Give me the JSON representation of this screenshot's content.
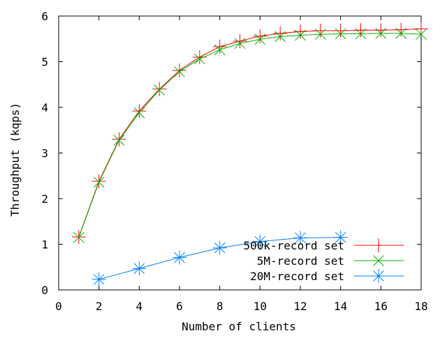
{
  "chart_data": {
    "type": "line",
    "xlabel": "Number of clients",
    "ylabel": "Throughput (kqps)",
    "xlim": [
      0,
      18
    ],
    "ylim": [
      0,
      6
    ],
    "x_ticks": [
      0,
      2,
      4,
      6,
      8,
      10,
      12,
      14,
      16,
      18
    ],
    "y_ticks": [
      0,
      1,
      2,
      3,
      4,
      5,
      6
    ],
    "grid": false,
    "legend_position": "bottom-right",
    "series": [
      {
        "name": "500k-record set",
        "color": "#ff0000",
        "marker": "plus",
        "x": [
          1,
          2,
          3,
          4,
          5,
          6,
          7,
          8,
          9,
          10,
          11,
          12,
          13,
          14,
          15,
          16,
          17,
          18
        ],
        "y": [
          1.16,
          2.38,
          3.3,
          3.92,
          4.4,
          4.81,
          5.1,
          5.33,
          5.45,
          5.56,
          5.62,
          5.66,
          5.68,
          5.68,
          5.69,
          5.69,
          5.7,
          5.72
        ]
      },
      {
        "name": "5M-record set",
        "color": "#00b000",
        "marker": "cross",
        "x": [
          1,
          2,
          3,
          4,
          5,
          6,
          7,
          8,
          9,
          10,
          11,
          12,
          13,
          14,
          15,
          16,
          17,
          18
        ],
        "y": [
          1.15,
          2.36,
          3.28,
          3.88,
          4.38,
          4.78,
          5.06,
          5.26,
          5.4,
          5.49,
          5.55,
          5.58,
          5.6,
          5.61,
          5.61,
          5.62,
          5.62,
          5.6
        ]
      },
      {
        "name": "20M-record set",
        "color": "#0080ff",
        "marker": "star",
        "x": [
          2,
          4,
          6,
          8,
          10,
          12,
          14
        ],
        "y": [
          0.23,
          0.47,
          0.71,
          0.92,
          1.06,
          1.14,
          1.15
        ]
      }
    ]
  }
}
